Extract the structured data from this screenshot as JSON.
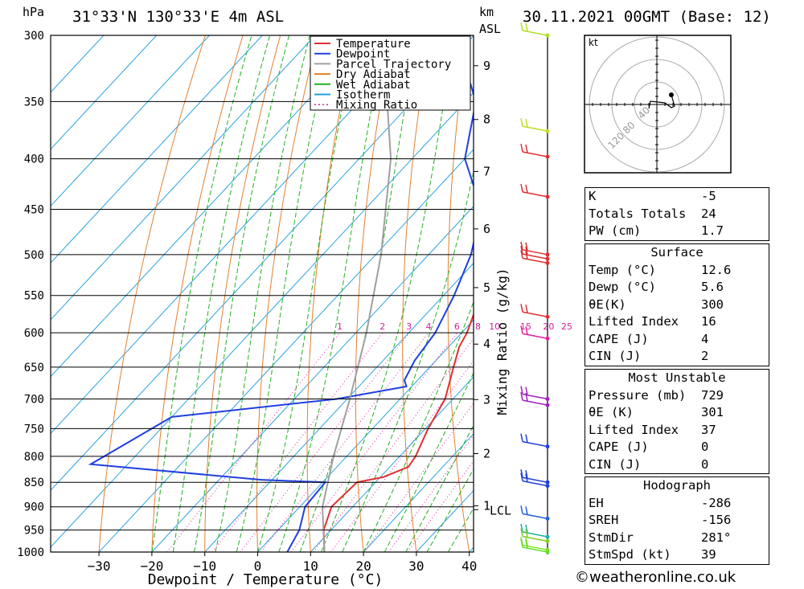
{
  "header": {
    "location": "31°33'N  130°33'E  4m  ASL",
    "datetime": "30.11.2021  00GMT  (Base: 12)",
    "hpa_label": "hPa",
    "km_label": "km",
    "asl_label": "ASL"
  },
  "chart_data": {
    "type": "line",
    "title": "",
    "xlabel": "Dewpoint / Temperature (°C)",
    "ylabel": "hPa",
    "right_ylabel": "Mixing Ratio (g/kg)",
    "xlim": [
      -40,
      40
    ],
    "ylim": [
      1000,
      300
    ],
    "x_ticks": [
      "−30",
      "−20",
      "−10",
      "0",
      "10",
      "20",
      "30",
      "40"
    ],
    "pressure_ticks": [
      300,
      350,
      400,
      450,
      500,
      550,
      600,
      650,
      700,
      750,
      800,
      850,
      900,
      950,
      1000
    ],
    "km_ticks": [
      {
        "label": "9",
        "p": 322
      },
      {
        "label": "8",
        "p": 365
      },
      {
        "label": "7",
        "p": 412
      },
      {
        "label": "6",
        "p": 471
      },
      {
        "label": "5",
        "p": 540
      },
      {
        "label": "4",
        "p": 616
      },
      {
        "label": "3",
        "p": 701
      },
      {
        "label": "2",
        "p": 795
      },
      {
        "label": "1",
        "p": 898
      }
    ],
    "lcl": {
      "label": "LCL",
      "p": 906
    },
    "mixing_ratio_labels": [
      "1",
      "2",
      "3",
      "4",
      "6",
      "8",
      "10",
      "15",
      "20",
      "25"
    ],
    "mixing_ratio_values": [
      1,
      2,
      3,
      4,
      6,
      8,
      10,
      15,
      20,
      25
    ],
    "legend": {
      "placement": "top-right of plot",
      "entries": [
        {
          "name": "Temperature",
          "color": "#e03030",
          "style": "solid"
        },
        {
          "name": "Dewpoint",
          "color": "#2040e0",
          "style": "solid"
        },
        {
          "name": "Parcel Trajectory",
          "color": "#a0a0a0",
          "style": "solid"
        },
        {
          "name": "Dry Adiabat",
          "color": "#e08020",
          "style": "solid"
        },
        {
          "name": "Wet Adiabat",
          "color": "#20b020",
          "style": "solid"
        },
        {
          "name": "Isotherm",
          "color": "#20a0e0",
          "style": "solid"
        },
        {
          "name": "Mixing Ratio",
          "color": "#e020a0",
          "style": "dotted"
        }
      ]
    },
    "series": [
      {
        "name": "Temperature",
        "color": "#e03030",
        "points": [
          [
            1000,
            12.6
          ],
          [
            950,
            8.6
          ],
          [
            900,
            6.0
          ],
          [
            850,
            6.5
          ],
          [
            840,
            10.5
          ],
          [
            820,
            13.5
          ],
          [
            800,
            13.0
          ],
          [
            750,
            10.5
          ],
          [
            700,
            8.5
          ],
          [
            650,
            4.5
          ],
          [
            620,
            2.0
          ],
          [
            600,
            1.0
          ],
          [
            550,
            -3.0
          ],
          [
            500,
            -8.5
          ],
          [
            450,
            -15.0
          ],
          [
            400,
            -23.0
          ],
          [
            350,
            -32.5
          ],
          [
            300,
            -43.5
          ]
        ]
      },
      {
        "name": "Dewpoint",
        "color": "#2040e0",
        "points": [
          [
            1000,
            5.6
          ],
          [
            950,
            4.0
          ],
          [
            900,
            1.0
          ],
          [
            850,
            0.5
          ],
          [
            845,
            -12.0
          ],
          [
            815,
            -47.0
          ],
          [
            730,
            -40.0
          ],
          [
            700,
            -12.0
          ],
          [
            680,
            -1.0
          ],
          [
            670,
            -2.5
          ],
          [
            640,
            -4.0
          ],
          [
            600,
            -5.0
          ],
          [
            550,
            -8.0
          ],
          [
            500,
            -12.0
          ],
          [
            450,
            -18.0
          ],
          [
            400,
            -30.0
          ],
          [
            350,
            -38.0
          ],
          [
            320,
            -47.0
          ],
          [
            300,
            -51.0
          ]
        ]
      },
      {
        "name": "Parcel Trajectory",
        "color": "#a0a0a0",
        "points": [
          [
            1000,
            12.6
          ],
          [
            900,
            4.3
          ],
          [
            850,
            1.0
          ],
          [
            800,
            -2.5
          ],
          [
            700,
            -9.5
          ],
          [
            600,
            -18.0
          ],
          [
            500,
            -29.0
          ],
          [
            400,
            -44.0
          ],
          [
            320,
            -62.0
          ]
        ]
      }
    ],
    "wind_barbs": [
      {
        "p": 300,
        "color": "#b0e020"
      },
      {
        "p": 375,
        "color": "#c0e020"
      },
      {
        "p": 398,
        "color": "#e03030"
      },
      {
        "p": 437,
        "color": "#e03030"
      },
      {
        "p": 500,
        "color": "#e03030"
      },
      {
        "p": 505,
        "color": "#e03030"
      },
      {
        "p": 510,
        "color": "#e03030"
      },
      {
        "p": 578,
        "color": "#e03030"
      },
      {
        "p": 608,
        "color": "#e020a0"
      },
      {
        "p": 700,
        "color": "#a020c0"
      },
      {
        "p": 710,
        "color": "#a020c0"
      },
      {
        "p": 782,
        "color": "#2040e0"
      },
      {
        "p": 850,
        "color": "#2040e0"
      },
      {
        "p": 857,
        "color": "#2040e0"
      },
      {
        "p": 925,
        "color": "#2060e0"
      },
      {
        "p": 965,
        "color": "#20b0a0"
      },
      {
        "p": 975,
        "color": "#80d020"
      },
      {
        "p": 995,
        "color": "#80e020"
      },
      {
        "p": 1000,
        "color": "#60e020"
      }
    ]
  },
  "hodograph": {
    "unit_label": "kt",
    "ring_labels": [
      "40",
      "80",
      "120"
    ],
    "trace": [
      [
        -10,
        -5
      ],
      [
        -8,
        4
      ],
      [
        10,
        2
      ],
      [
        18,
        -4
      ],
      [
        22,
        -2
      ],
      [
        18,
        12
      ]
    ]
  },
  "indices": {
    "top": [
      {
        "k": "K",
        "v": "-5"
      },
      {
        "k": "Totals Totals",
        "v": "24"
      },
      {
        "k": "PW (cm)",
        "v": "1.7"
      }
    ],
    "surface": {
      "title": "Surface",
      "rows": [
        {
          "k": "Temp (°C)",
          "v": "12.6"
        },
        {
          "k": "Dewp (°C)",
          "v": "5.6"
        },
        {
          "k": "θE(K)",
          "v": "300"
        },
        {
          "k": "Lifted Index",
          "v": "16"
        },
        {
          "k": "CAPE (J)",
          "v": "4"
        },
        {
          "k": "CIN (J)",
          "v": "2"
        }
      ]
    },
    "most_unstable": {
      "title": "Most Unstable",
      "rows": [
        {
          "k": "Pressure (mb)",
          "v": "729"
        },
        {
          "k": "θE (K)",
          "v": "301"
        },
        {
          "k": "Lifted Index",
          "v": "37"
        },
        {
          "k": "CAPE (J)",
          "v": "0"
        },
        {
          "k": "CIN (J)",
          "v": "0"
        }
      ]
    },
    "hodograph_box": {
      "title": "Hodograph",
      "rows": [
        {
          "k": "EH",
          "v": "-286"
        },
        {
          "k": "SREH",
          "v": "-156"
        },
        {
          "k": "StmDir",
          "v": "281°"
        },
        {
          "k": "StmSpd (kt)",
          "v": "39"
        }
      ]
    }
  },
  "credit": "©weatheronline.co.uk"
}
